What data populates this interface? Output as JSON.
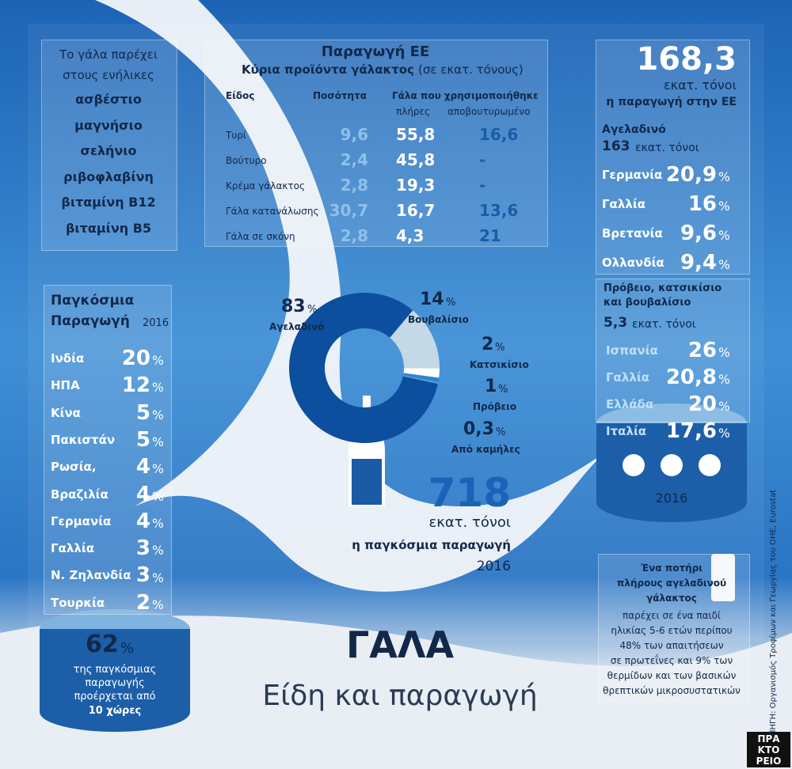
{
  "percent": "%",
  "nutrients": {
    "intro": [
      "Το γάλα παρέχει",
      "στους ενήλικες"
    ],
    "items": [
      "ασβέστιο",
      "μαγνήσιο",
      "σελήνιο",
      "ριβοφλαβίνη",
      "βιταμίνη B12",
      "βιταμίνη B5"
    ]
  },
  "eu_table": {
    "title": "Παραγωγή ΕΕ",
    "subtitle": "Κύρια προϊόντα γάλακτος",
    "subtitle_unit": "(σε εκατ. τόνους)",
    "headers": [
      "Είδος",
      "Ποσότητα",
      "Γάλα που χρησιμοποιήθηκε"
    ],
    "subheaders": [
      "πλήρες",
      "αποβουτυρωμένο"
    ],
    "rows": [
      [
        "Τυρί",
        "9,6",
        "55,8",
        "16,6"
      ],
      [
        "Βούτυρο",
        "2,4",
        "45,8",
        "-"
      ],
      [
        "Κρέμα γάλακτος",
        "2,8",
        "19,3",
        "-"
      ],
      [
        "Γάλα κατανάλωσης",
        "30,7",
        "16,7",
        "13,6"
      ],
      [
        "Γάλα σε σκόνη",
        "2,8",
        "4,3",
        "21"
      ]
    ]
  },
  "eu_total": {
    "value": "168,3",
    "unit": "εκατ. τόνοι",
    "caption": "η παραγωγή στην ΕΕ"
  },
  "cow": {
    "title": "Αγελαδινό",
    "value": "163",
    "unit": "εκατ. τόνοι",
    "rows": [
      [
        "Γερμανία",
        "20,9"
      ],
      [
        "Γαλλία",
        "16"
      ],
      [
        "Βρετανία",
        "9,6"
      ],
      [
        "Ολλανδία",
        "9,4"
      ]
    ]
  },
  "other_milk": {
    "title": [
      "Πρόβειο, κατσικίσιο",
      "και βουβαλίσιο"
    ],
    "value": "5,3",
    "unit": "εκατ. τόνοι",
    "rows": [
      [
        "Ισπανία",
        "26"
      ],
      [
        "Γαλλία",
        "20,8"
      ],
      [
        "Ελλάδα",
        "20"
      ],
      [
        "Ιταλία",
        "17,6"
      ]
    ],
    "year": "2016"
  },
  "world": {
    "title": [
      "Παγκόσμια",
      "Παραγωγή"
    ],
    "year": "2016",
    "rows": [
      [
        "Ινδία",
        "20"
      ],
      [
        "ΗΠΑ",
        "12"
      ],
      [
        "Κίνα",
        "5"
      ],
      [
        "Πακιστάν",
        "5"
      ],
      [
        "Ρωσία,",
        "4"
      ],
      [
        "Βραζιλία",
        "4"
      ],
      [
        "Γερμανία",
        "4"
      ],
      [
        "Γαλλία",
        "3"
      ],
      [
        "Ν. Ζηλανδία",
        "3"
      ],
      [
        "Τουρκία",
        "2"
      ]
    ]
  },
  "world_share": {
    "value": "62",
    "lines": [
      "της παγκόσμιας",
      "παραγωγής",
      "προέρχεται από"
    ],
    "bold": "10 χώρες"
  },
  "donut": {
    "names": [
      "Βουβαλίσιο",
      "Κατσικίσιο",
      "Πρόβειο",
      "Από καμήλες",
      "Αγελαδινό"
    ],
    "values": [
      14,
      2,
      1,
      0.3,
      83
    ],
    "value_labels": [
      "14",
      "2",
      "1",
      "0,3",
      "83"
    ],
    "colors": [
      "#c5d8e6",
      "#ffffff",
      "#2f86d0",
      "#5fa3dc",
      "#0c4f9e"
    ]
  },
  "world_total": {
    "value": "718",
    "unit": "εκατ. τόνοι",
    "caption": "η παγκόσμια παραγωγή",
    "year": "2016"
  },
  "title": "ΓΑΛΑ",
  "subtitle": "Είδη και παραγωγή",
  "glass": {
    "bold": [
      "Ένα ποτήρι",
      "πλήρους αγελαδινού",
      "γάλακτος"
    ],
    "lines": [
      "παρέχει σε ένα παιδί",
      "ηλικίας 5-6 ετών περίπου",
      "48% των απαιτήσεων",
      "σε πρωτεΐνες και 9% των",
      "θερμίδων και των βασικών",
      "θρεπτικών μικροσυστατικών"
    ]
  },
  "source": "ΠΗΓΗ: Οργανισμός Τροφίμων και Γεωργίας του ΟΗΕ, Eurostat",
  "logo": [
    "ΠΡΑ",
    "ΚΤΟ",
    "ΡΕΙΟ"
  ]
}
